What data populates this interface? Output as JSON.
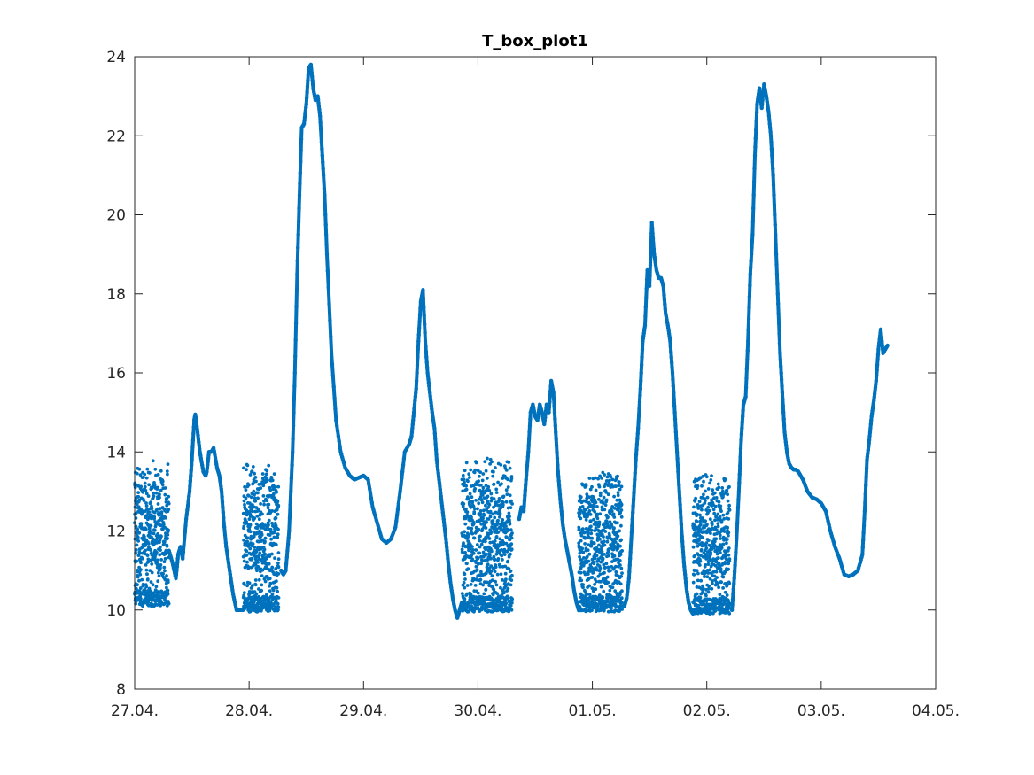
{
  "chart_data": {
    "type": "scatter",
    "title": "T_box_plot1",
    "xlabel": "",
    "ylabel": "",
    "x_tick_labels": [
      "27.04.",
      "28.04.",
      "29.04.",
      "30.04.",
      "01.05.",
      "02.05.",
      "03.05.",
      "04.05."
    ],
    "y_tick_labels": [
      "8",
      "10",
      "12",
      "14",
      "16",
      "18",
      "20",
      "22",
      "24"
    ],
    "x_axis": "days from 27.04. (0 = 27.04., 7 = 04.05.)",
    "xlim": [
      0,
      7
    ],
    "ylim": [
      8,
      24
    ],
    "grid": false,
    "marker_color": "#0072BD",
    "smooth_segments": [
      {
        "x": [
          0.3,
          0.33,
          0.36,
          0.38,
          0.4,
          0.42,
          0.45,
          0.48,
          0.5,
          0.52,
          0.53,
          0.55,
          0.57,
          0.6,
          0.62,
          0.63,
          0.65,
          0.67,
          0.69,
          0.72,
          0.74,
          0.76,
          0.78,
          0.8,
          0.83,
          0.86,
          0.89,
          0.92,
          0.95
        ],
        "y": [
          11.5,
          11.2,
          10.8,
          11.4,
          11.6,
          11.3,
          12.3,
          13.0,
          13.8,
          14.8,
          14.95,
          14.5,
          14.0,
          13.5,
          13.4,
          13.5,
          14.0,
          14.0,
          14.1,
          13.6,
          13.4,
          13.0,
          12.2,
          11.6,
          11.0,
          10.4,
          10.0,
          10.0,
          10.0
        ]
      },
      {
        "x": [
          1.28,
          1.3,
          1.32,
          1.35,
          1.38,
          1.4,
          1.42,
          1.44,
          1.46,
          1.48,
          1.5,
          1.52,
          1.54,
          1.56,
          1.58,
          1.6,
          1.62,
          1.64,
          1.66,
          1.68,
          1.72,
          1.76,
          1.8,
          1.84,
          1.88,
          1.92,
          1.96,
          2.0,
          2.04,
          2.08,
          2.12
        ],
        "y": [
          11.0,
          10.9,
          11.0,
          12.0,
          14.0,
          16.0,
          18.5,
          20.5,
          22.2,
          22.3,
          22.8,
          23.7,
          23.8,
          23.2,
          22.9,
          23.0,
          22.5,
          21.5,
          20.5,
          19.0,
          16.5,
          14.8,
          14.0,
          13.6,
          13.4,
          13.3,
          13.35,
          13.4,
          13.3,
          12.6,
          12.2
        ]
      },
      {
        "x": [
          2.12,
          2.16,
          2.2,
          2.24,
          2.28,
          2.32,
          2.36,
          2.4,
          2.42,
          2.44,
          2.46,
          2.48,
          2.5,
          2.52,
          2.54,
          2.56,
          2.58,
          2.6,
          2.62,
          2.64,
          2.66,
          2.68,
          2.7,
          2.72,
          2.74,
          2.76,
          2.78,
          2.8,
          2.82,
          2.84,
          2.86
        ],
        "y": [
          12.2,
          11.8,
          11.7,
          11.8,
          12.1,
          13.0,
          14.0,
          14.2,
          14.4,
          15.0,
          15.6,
          16.8,
          17.8,
          18.1,
          16.8,
          16.0,
          15.5,
          15.0,
          14.6,
          13.8,
          13.3,
          12.8,
          12.3,
          11.8,
          11.2,
          10.7,
          10.3,
          10.0,
          9.8,
          10.0,
          10.2
        ]
      },
      {
        "x": [
          3.36,
          3.38,
          3.4,
          3.42,
          3.44,
          3.46,
          3.48,
          3.5,
          3.52,
          3.54,
          3.56,
          3.58,
          3.6,
          3.62,
          3.64,
          3.66,
          3.68,
          3.7,
          3.72,
          3.74,
          3.76,
          3.78,
          3.8,
          3.82,
          3.84,
          3.86,
          3.88
        ],
        "y": [
          12.3,
          12.6,
          12.5,
          13.3,
          14.0,
          15.0,
          15.2,
          14.9,
          14.8,
          15.2,
          15.0,
          14.7,
          15.2,
          15.0,
          15.8,
          15.5,
          14.5,
          13.5,
          12.8,
          12.2,
          11.8,
          11.5,
          11.2,
          10.9,
          10.5,
          10.2,
          10.0
        ]
      },
      {
        "x": [
          4.28,
          4.3,
          4.32,
          4.34,
          4.36,
          4.38,
          4.4,
          4.42,
          4.44,
          4.46,
          4.48,
          4.5,
          4.52,
          4.54,
          4.56,
          4.58,
          4.6,
          4.62,
          4.64,
          4.66,
          4.68,
          4.7,
          4.72,
          4.74,
          4.76,
          4.78,
          4.8,
          4.82,
          4.84,
          4.86,
          4.88
        ],
        "y": [
          10.1,
          10.3,
          10.8,
          11.8,
          12.8,
          13.8,
          14.6,
          15.6,
          16.8,
          17.2,
          18.6,
          18.2,
          19.8,
          19.0,
          18.6,
          18.4,
          18.4,
          18.2,
          17.5,
          17.2,
          16.8,
          16.0,
          15.0,
          14.0,
          13.0,
          12.0,
          11.2,
          10.6,
          10.2,
          10.0,
          9.9
        ]
      },
      {
        "x": [
          5.22,
          5.24,
          5.26,
          5.28,
          5.3,
          5.32,
          5.34,
          5.36,
          5.38,
          5.4,
          5.42,
          5.44,
          5.46,
          5.48,
          5.5,
          5.52,
          5.54,
          5.56,
          5.58,
          5.6,
          5.62,
          5.64,
          5.66,
          5.68,
          5.7,
          5.72,
          5.74,
          5.76,
          5.78,
          5.8,
          5.84,
          5.88,
          5.92,
          5.96,
          6.0,
          6.04,
          6.08,
          6.12,
          6.16,
          6.2,
          6.24,
          6.28,
          6.32,
          6.36,
          6.38,
          6.4,
          6.42,
          6.44,
          6.46,
          6.48,
          6.5,
          6.52,
          6.54,
          6.56,
          6.58
        ],
        "y": [
          10.0,
          10.8,
          11.8,
          13.0,
          14.3,
          15.2,
          15.4,
          16.8,
          18.5,
          19.5,
          21.5,
          22.8,
          23.2,
          22.7,
          23.3,
          23.0,
          22.6,
          22.0,
          21.0,
          19.5,
          18.0,
          16.5,
          15.5,
          14.5,
          14.0,
          13.7,
          13.6,
          13.55,
          13.55,
          13.5,
          13.3,
          13.0,
          12.85,
          12.8,
          12.7,
          12.5,
          12.0,
          11.6,
          11.3,
          10.9,
          10.85,
          10.9,
          11.0,
          11.4,
          12.5,
          13.8,
          14.3,
          14.9,
          15.3,
          15.8,
          16.6,
          17.1,
          16.5,
          16.6,
          16.7
        ]
      }
    ],
    "oscillating_segments": [
      {
        "x_range": [
          0.0,
          0.3
        ],
        "y_min": 10.1,
        "y_max": 13.8
      },
      {
        "x_range": [
          0.95,
          1.26
        ],
        "y_min": 9.95,
        "y_max": 13.8
      },
      {
        "x_range": [
          2.86,
          3.3
        ],
        "y_min": 9.95,
        "y_max": 13.85
      },
      {
        "x_range": [
          3.88,
          4.26
        ],
        "y_min": 9.95,
        "y_max": 13.5
      },
      {
        "x_range": [
          4.88,
          5.2
        ],
        "y_min": 9.9,
        "y_max": 13.5
      }
    ]
  }
}
